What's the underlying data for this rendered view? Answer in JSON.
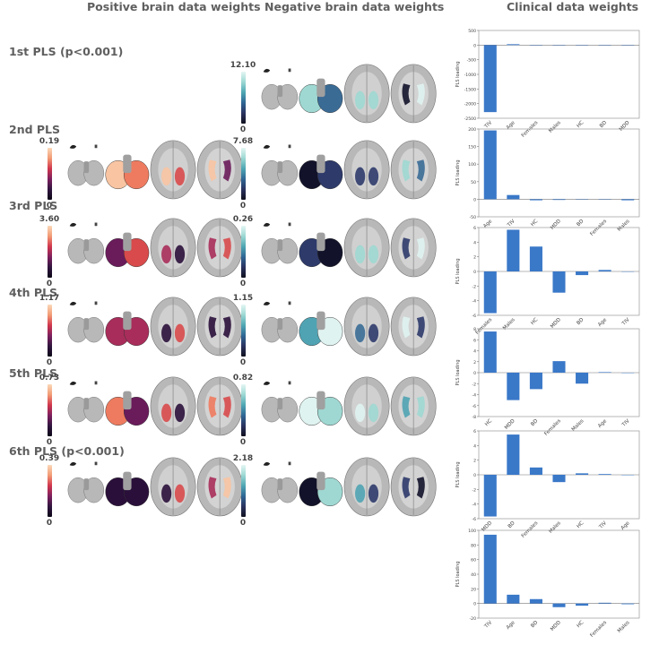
{
  "headers": {
    "positive": "Positive brain data weights",
    "negative": "Negative brain data weights",
    "clinical": "Clinical data weights"
  },
  "colors": {
    "bar": "#3a78c8",
    "axis": "#777777"
  },
  "components": [
    {
      "label": "1st PLS (p<0.001)",
      "pos_max": null,
      "pos_min": null,
      "neg_max": "12.10",
      "neg_min": "0"
    },
    {
      "label": "2nd PLS",
      "pos_max": "0.19",
      "pos_min": "0",
      "neg_max": "7.68",
      "neg_min": "0"
    },
    {
      "label": "3rd PLS",
      "pos_max": "3.60",
      "pos_min": "0",
      "neg_max": "0.26",
      "neg_min": "0"
    },
    {
      "label": "4th PLS",
      "pos_max": "1.17",
      "pos_min": "0",
      "neg_max": "1.15",
      "neg_min": "0"
    },
    {
      "label": "5th PLS",
      "pos_max": "0.73",
      "pos_min": "0",
      "neg_max": "0.82",
      "neg_min": "0"
    },
    {
      "label": "6th PLS (p<0.001)",
      "pos_max": "0.39",
      "pos_min": "0",
      "neg_max": "2.18",
      "neg_min": "0"
    }
  ],
  "chart_data": [
    {
      "type": "bar",
      "title": "1st PLS (p<0.001)",
      "ylabel": "PLS loading",
      "categories": [
        "TIV",
        "Age",
        "Females",
        "Males",
        "HC",
        "BD",
        "MDD"
      ],
      "values": [
        -2290,
        30,
        -8,
        0,
        0,
        -8,
        -8
      ],
      "ylim": [
        -2500,
        500
      ],
      "yticks": [
        500,
        0,
        -500,
        -1000,
        -1500,
        -2000,
        -2500
      ]
    },
    {
      "type": "bar",
      "title": "2nd PLS",
      "ylabel": "PLS loading",
      "categories": [
        "Age",
        "TIV",
        "HC",
        "MDD",
        "BD",
        "Females",
        "Males"
      ],
      "values": [
        196,
        12,
        -3,
        -2,
        0,
        0,
        -3
      ],
      "ylim": [
        -50,
        200
      ],
      "yticks": [
        200,
        150,
        100,
        50,
        0,
        -50
      ]
    },
    {
      "type": "bar",
      "title": "3rd PLS",
      "ylabel": "PLS loading",
      "categories": [
        "Females",
        "Males",
        "HC",
        "MDD",
        "BD",
        "Age",
        "TIV"
      ],
      "values": [
        -5.7,
        5.7,
        3.4,
        -2.9,
        -0.5,
        0.2,
        0
      ],
      "ylim": [
        -6,
        6
      ],
      "yticks": [
        6,
        4,
        2,
        0,
        -2,
        -4,
        -6
      ]
    },
    {
      "type": "bar",
      "title": "4th PLS",
      "ylabel": "PLS loading",
      "categories": [
        "HC",
        "MDD",
        "BD",
        "Females",
        "Males",
        "Age",
        "TIV"
      ],
      "values": [
        7.5,
        -5,
        -3,
        2.1,
        -2,
        0.1,
        0
      ],
      "ylim": [
        -8,
        8
      ],
      "yticks": [
        8,
        6,
        4,
        2,
        0,
        -2,
        -4,
        -6,
        -8
      ]
    },
    {
      "type": "bar",
      "title": "5th PLS",
      "ylabel": "PLS loading",
      "categories": [
        "MDD",
        "BD",
        "Females",
        "Males",
        "HC",
        "TIV",
        "Age"
      ],
      "values": [
        -5.7,
        5.5,
        1.0,
        -1.0,
        0.2,
        0.1,
        0
      ],
      "ylim": [
        -6,
        6
      ],
      "yticks": [
        6,
        4,
        2,
        0,
        -2,
        -4,
        -6
      ]
    },
    {
      "type": "bar",
      "title": "6th PLS (p<0.001)",
      "ylabel": "PLS loading",
      "categories": [
        "TIV",
        "Age",
        "BD",
        "MDD",
        "HC",
        "Females",
        "Males"
      ],
      "values": [
        94,
        12,
        6,
        -5,
        -3,
        1,
        -1
      ],
      "ylim": [
        -20,
        100
      ],
      "yticks": [
        100,
        80,
        60,
        40,
        20,
        0,
        -20
      ]
    }
  ]
}
